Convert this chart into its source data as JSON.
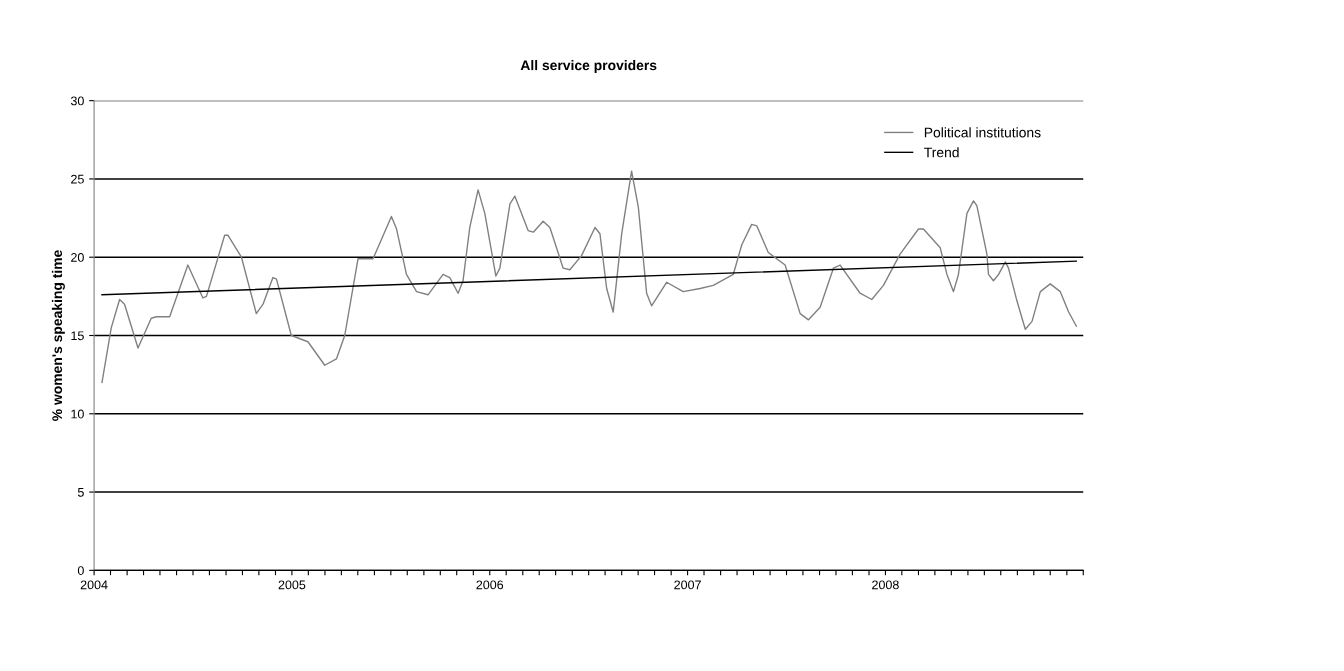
{
  "chart_data": {
    "type": "line",
    "title": "All service providers",
    "ylabel": "% women's speaking time",
    "series": [
      {
        "name": "Political institutions",
        "color": "#808080",
        "x": [
          2004.04,
          2004.087,
          2004.129,
          2004.154,
          2004.222,
          2004.289,
          2004.315,
          2004.382,
          2004.474,
          2004.55,
          2004.568,
          2004.66,
          2004.677,
          2004.745,
          2004.82,
          2004.854,
          2004.904,
          2004.922,
          2004.997,
          2005.081,
          2005.166,
          2005.225,
          2005.267,
          2005.334,
          2005.41,
          2005.503,
          2005.529,
          2005.579,
          2005.63,
          2005.688,
          2005.764,
          2005.798,
          2005.84,
          2005.865,
          2005.899,
          2005.941,
          2005.975,
          2006.031,
          2006.051,
          2006.102,
          2006.127,
          2006.194,
          2006.22,
          2006.27,
          2006.304,
          2006.371,
          2006.405,
          2006.464,
          2006.532,
          2006.557,
          2006.591,
          2006.624,
          2006.667,
          2006.717,
          2006.751,
          2006.793,
          2006.818,
          2006.894,
          2006.978,
          2007.063,
          2007.13,
          2007.231,
          2007.274,
          2007.324,
          2007.35,
          2007.408,
          2007.493,
          2007.569,
          2007.611,
          2007.67,
          2007.737,
          2007.771,
          2007.872,
          2007.931,
          2007.99,
          2008.074,
          2008.167,
          2008.192,
          2008.277,
          2008.311,
          2008.344,
          2008.369,
          2008.412,
          2008.445,
          2008.462,
          2008.513,
          2008.521,
          2008.546,
          2008.572,
          2008.606,
          2008.622,
          2008.665,
          2008.707,
          2008.741,
          2008.783,
          2008.833,
          2008.884,
          2008.926,
          2008.965
        ],
        "values": [
          12.0,
          15.5,
          17.3,
          17.0,
          14.2,
          16.1,
          16.2,
          16.2,
          19.5,
          17.4,
          17.5,
          21.4,
          21.4,
          20.0,
          16.4,
          17.0,
          18.7,
          18.6,
          15.0,
          14.6,
          13.1,
          13.5,
          15.0,
          19.9,
          19.9,
          22.6,
          21.8,
          18.9,
          17.8,
          17.6,
          18.9,
          18.7,
          17.7,
          18.5,
          21.9,
          24.3,
          22.8,
          18.8,
          19.3,
          23.4,
          23.9,
          21.7,
          21.6,
          22.3,
          21.9,
          19.3,
          19.2,
          20.1,
          21.9,
          21.5,
          18.0,
          16.5,
          21.5,
          25.5,
          23.2,
          17.7,
          16.9,
          18.4,
          17.8,
          18.0,
          18.2,
          18.9,
          20.8,
          22.1,
          22.0,
          20.3,
          19.5,
          16.4,
          16.0,
          16.8,
          19.3,
          19.5,
          17.7,
          17.3,
          18.2,
          20.2,
          21.8,
          21.8,
          20.6,
          18.9,
          17.8,
          18.9,
          22.8,
          23.6,
          23.3,
          20.2,
          18.9,
          18.5,
          18.9,
          19.7,
          19.3,
          17.2,
          15.4,
          15.9,
          17.8,
          18.3,
          17.8,
          16.5,
          15.6
        ]
      },
      {
        "name": "Trend",
        "color": "#000000",
        "x": [
          2004.04,
          2008.965
        ],
        "values": [
          17.6,
          19.75
        ]
      }
    ],
    "xlim": [
      2004,
      2009
    ],
    "xticks": [
      2004,
      {
        "value": 2004.083,
        "label": null
      },
      {
        "value": 2004.167,
        "label": null
      },
      {
        "value": 2004.25,
        "label": null
      },
      {
        "value": 2004.333,
        "label": null
      },
      {
        "value": 2004.417,
        "label": null
      },
      {
        "value": 2004.5,
        "label": null
      },
      {
        "value": 2004.583,
        "label": null
      },
      {
        "value": 2004.667,
        "label": null
      },
      {
        "value": 2004.75,
        "label": null
      },
      {
        "value": 2004.833,
        "label": null
      },
      {
        "value": 2004.917,
        "label": null
      },
      2005,
      {
        "value": 2005.083,
        "label": null
      },
      {
        "value": 2005.167,
        "label": null
      },
      {
        "value": 2005.25,
        "label": null
      },
      {
        "value": 2005.333,
        "label": null
      },
      {
        "value": 2005.417,
        "label": null
      },
      {
        "value": 2005.5,
        "label": null
      },
      {
        "value": 2005.583,
        "label": null
      },
      {
        "value": 2005.667,
        "label": null
      },
      {
        "value": 2005.75,
        "label": null
      },
      {
        "value": 2005.833,
        "label": null
      },
      {
        "value": 2005.917,
        "label": null
      },
      2006,
      {
        "value": 2006.083,
        "label": null
      },
      {
        "value": 2006.167,
        "label": null
      },
      {
        "value": 2006.25,
        "label": null
      },
      {
        "value": 2006.333,
        "label": null
      },
      {
        "value": 2006.417,
        "label": null
      },
      {
        "value": 2006.5,
        "label": null
      },
      {
        "value": 2006.583,
        "label": null
      },
      {
        "value": 2006.667,
        "label": null
      },
      {
        "value": 2006.75,
        "label": null
      },
      {
        "value": 2006.833,
        "label": null
      },
      {
        "value": 2006.917,
        "label": null
      },
      2007,
      {
        "value": 2007.083,
        "label": null
      },
      {
        "value": 2007.167,
        "label": null
      },
      {
        "value": 2007.25,
        "label": null
      },
      {
        "value": 2007.333,
        "label": null
      },
      {
        "value": 2007.417,
        "label": null
      },
      {
        "value": 2007.5,
        "label": null
      },
      {
        "value": 2007.583,
        "label": null
      },
      {
        "value": 2007.667,
        "label": null
      },
      {
        "value": 2007.75,
        "label": null
      },
      {
        "value": 2007.833,
        "label": null
      },
      {
        "value": 2007.917,
        "label": null
      },
      2008,
      {
        "value": 2008.083,
        "label": null
      },
      {
        "value": 2008.167,
        "label": null
      },
      {
        "value": 2008.25,
        "label": null
      },
      {
        "value": 2008.333,
        "label": null
      },
      {
        "value": 2008.417,
        "label": null
      },
      {
        "value": 2008.5,
        "label": null
      },
      {
        "value": 2008.583,
        "label": null
      },
      {
        "value": 2008.667,
        "label": null
      },
      {
        "value": 2008.75,
        "label": null
      },
      {
        "value": 2008.833,
        "label": null
      },
      {
        "value": 2008.917,
        "label": null
      },
      {
        "value": 2009,
        "label": null
      }
    ],
    "ylim": [
      0,
      30
    ],
    "yticks": [
      0,
      5,
      10,
      15,
      20,
      25,
      30
    ],
    "grid": "y",
    "legend": "top right",
    "marker": "none",
    "line_style": "solid"
  }
}
